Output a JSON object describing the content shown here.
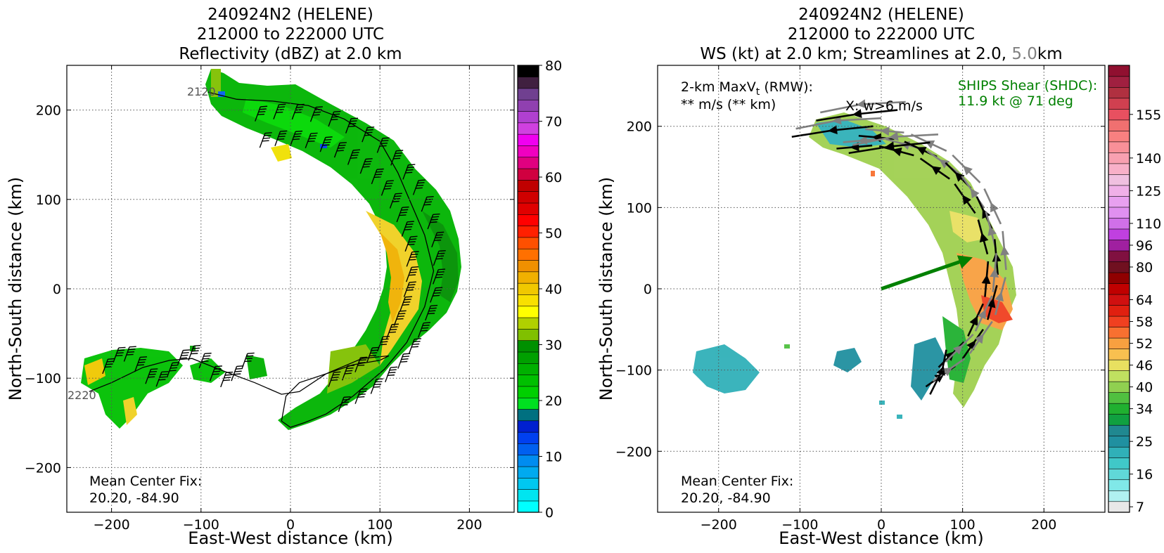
{
  "chart_data": [
    {
      "type": "heatmap",
      "title_lines": [
        "240924N2 (HELENE)",
        "212000 to 222000 UTC",
        "Reflectivity (dBZ) at 2.0 km"
      ],
      "xlabel": "East-West distance (km)",
      "ylabel": "North-South distance (km)",
      "xlim": [
        -250,
        250
      ],
      "ylim": [
        -250,
        250
      ],
      "xticks": [
        -200,
        -100,
        0,
        100,
        200
      ],
      "yticks": [
        -200,
        -100,
        0,
        100,
        200
      ],
      "grid": true,
      "annotations": {
        "center_fix_label": "Mean Center Fix:",
        "center_fix_value": "20.20, -84.90",
        "track_start_label": "2120",
        "track_end_label": "2220"
      },
      "flight_track_km": [
        [
          -92,
          220
        ],
        [
          -60,
          212
        ],
        [
          -20,
          210
        ],
        [
          20,
          205
        ],
        [
          60,
          190
        ],
        [
          100,
          165
        ],
        [
          120,
          130
        ],
        [
          135,
          95
        ],
        [
          150,
          60
        ],
        [
          160,
          20
        ],
        [
          150,
          -20
        ],
        [
          130,
          -60
        ],
        [
          105,
          -90
        ],
        [
          70,
          -120
        ],
        [
          40,
          -140
        ],
        [
          15,
          -150
        ],
        [
          0,
          -155
        ],
        [
          -10,
          -148
        ],
        [
          -5,
          -120
        ],
        [
          10,
          -105
        ],
        [
          40,
          -95
        ],
        [
          70,
          -85
        ],
        [
          100,
          -80
        ],
        [
          110,
          -75
        ],
        [
          80,
          -78
        ],
        [
          40,
          -95
        ],
        [
          10,
          -115
        ],
        [
          -10,
          -118
        ],
        [
          -40,
          -105
        ],
        [
          -80,
          -90
        ],
        [
          -110,
          -78
        ],
        [
          -135,
          -80
        ],
        [
          -165,
          -88
        ],
        [
          -200,
          -105
        ],
        [
          -225,
          -115
        ]
      ],
      "colorbar": {
        "ticks": [
          0,
          10,
          20,
          30,
          40,
          50,
          60,
          70,
          80
        ],
        "colors": [
          "#00ffff",
          "#00e5f0",
          "#00c8f0",
          "#00aaf0",
          "#008cf0",
          "#0060f0",
          "#0040f0",
          "#0020d0",
          "#007080",
          "#00e020",
          "#00d000",
          "#00c000",
          "#00b000",
          "#00a000",
          "#009000",
          "#80c000",
          "#b0d000",
          "#ffff00",
          "#f8e000",
          "#f0c800",
          "#f0b000",
          "#f09000",
          "#ff7000",
          "#ff5000",
          "#ff2000",
          "#ff0000",
          "#e00000",
          "#d00000",
          "#c00000",
          "#d00040",
          "#e00080",
          "#f000c0",
          "#f000f0",
          "#d040e0",
          "#b040d0",
          "#9040b0",
          "#704090",
          "#402040",
          "#000000"
        ]
      }
    },
    {
      "type": "heatmap",
      "title_lines": [
        "240924N2 (HELENE)",
        "212000 to 222000 UTC"
      ],
      "title_line3": {
        "prefix": "WS (kt) at 2.0 km; Streamlines at 2.0, ",
        "highlight": "5.0",
        "suffix": "km"
      },
      "xlabel": "East-West distance (km)",
      "ylabel": "North-South distance (km)",
      "xlim": [
        -275,
        275
      ],
      "ylim": [
        -275,
        275
      ],
      "xticks": [
        -200,
        -100,
        0,
        100,
        200
      ],
      "yticks": [
        -200,
        -100,
        0,
        100,
        200
      ],
      "grid": true,
      "annotations": {
        "maxvt_line1": "2-km MaxV",
        "maxvt_sub": "t",
        "maxvt_line1_suffix": " (RMW):",
        "maxvt_line2": "** m/s (** km)",
        "w_note": "X: w>6 m/s",
        "ships_label": "SHIPS Shear (SHDC):",
        "ships_value": "11.9 kt @ 71 deg",
        "center_fix_label": "Mean Center Fix:",
        "center_fix_value": "20.20, -84.90"
      },
      "shear_vector": {
        "direction_deg": 71,
        "magnitude_kt": 11.9
      },
      "colors": {
        "shear": "#008000",
        "stream_low": "#000000",
        "stream_high": "#808080",
        "highlight": "#808080"
      },
      "colorbar": {
        "ticks": [
          7,
          16,
          25,
          34,
          40,
          46,
          52,
          58,
          64,
          80,
          96,
          110,
          125,
          140,
          155
        ],
        "colors": [
          "#e8e8e8",
          "#b0f0f0",
          "#80e8e8",
          "#60d8d8",
          "#40c8c8",
          "#30b0b8",
          "#2090a0",
          "#208890",
          "#10a040",
          "#20b030",
          "#50c040",
          "#90d050",
          "#c0e060",
          "#e8e060",
          "#f8c050",
          "#f8a040",
          "#f87030",
          "#f04020",
          "#e02010",
          "#d01010",
          "#c00000",
          "#900000",
          "#701020",
          "#801040",
          "#a020a0",
          "#c040e0",
          "#d070e8",
          "#e090f0",
          "#e8a0f0",
          "#f0b0e8",
          "#f0c0e0",
          "#f8b0c8",
          "#f8a0b0",
          "#f89098",
          "#f88080",
          "#f07070",
          "#e85060",
          "#d04050",
          "#b03040",
          "#a02040",
          "#901030"
        ]
      }
    }
  ]
}
